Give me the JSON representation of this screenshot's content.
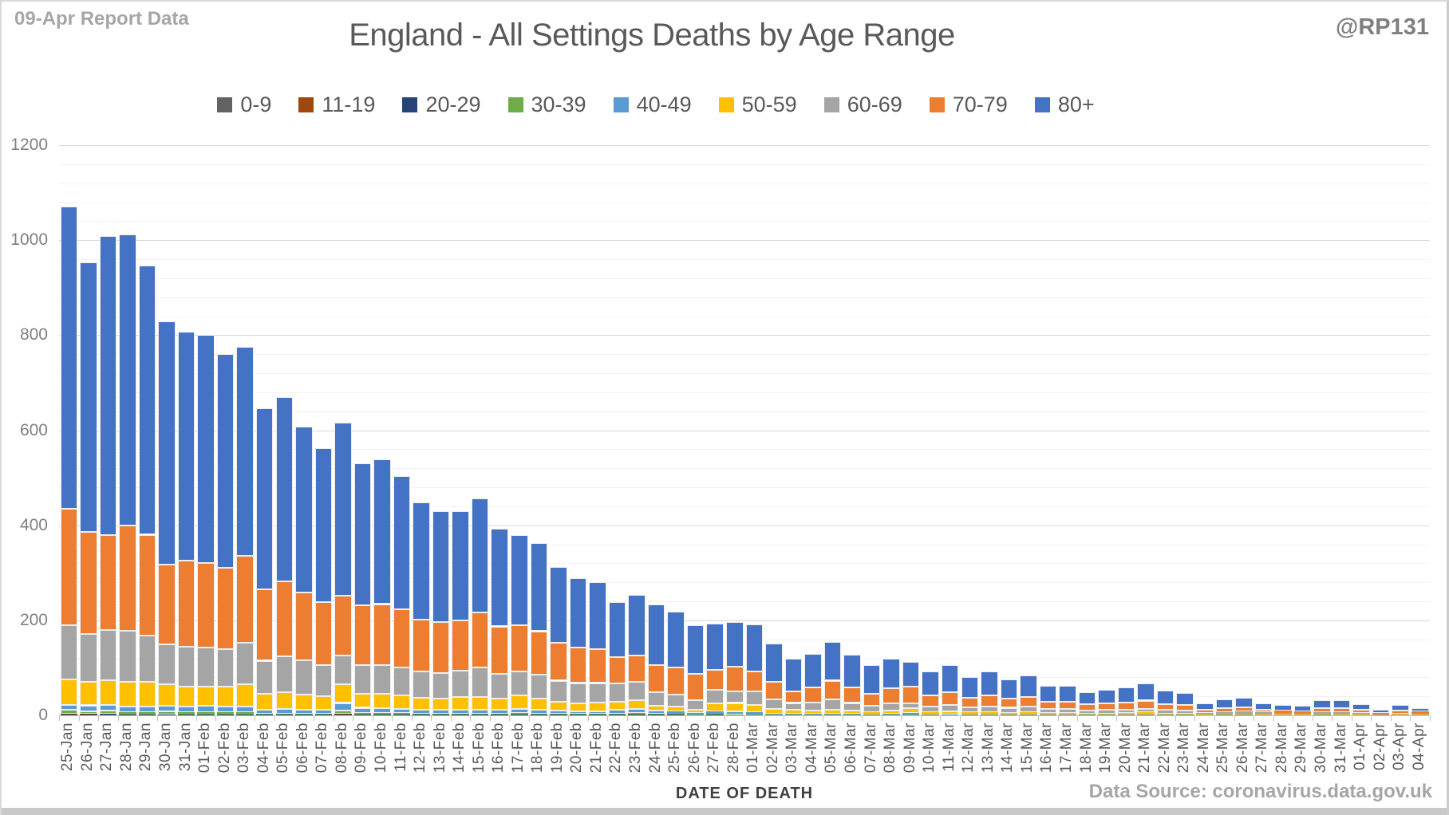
{
  "header": {
    "report_label": "09-Apr Report Data",
    "handle": "@RP131"
  },
  "footer": {
    "xaxis_title": "DATE OF DEATH",
    "data_source": "Data Source: coronavirus.data.gov.uk"
  },
  "colors": {
    "title_text": "#595959",
    "muted_text": "#A6A6A6",
    "axis_text": "#7F7F7F",
    "major_gridline": "#D9D9D9",
    "minor_gridline": "#F2F2F2",
    "axis_line": "#BFBFBF"
  },
  "chart_data": {
    "type": "bar",
    "stacked": true,
    "title": "England - All Settings Deaths by Age Range",
    "xlabel": "DATE OF DEATH",
    "ylabel": "",
    "legend_position": "top",
    "grid": true,
    "ylim": [
      0,
      1200
    ],
    "major_unit": 200,
    "minor_unit": 40,
    "ytick_labels": [
      "0",
      "200",
      "400",
      "600",
      "800",
      "1000",
      "1200"
    ],
    "categories": [
      "25-Jan",
      "26-Jan",
      "27-Jan",
      "28-Jan",
      "29-Jan",
      "30-Jan",
      "31-Jan",
      "01-Feb",
      "02-Feb",
      "03-Feb",
      "04-Feb",
      "05-Feb",
      "06-Feb",
      "07-Feb",
      "08-Feb",
      "09-Feb",
      "10-Feb",
      "11-Feb",
      "12-Feb",
      "13-Feb",
      "14-Feb",
      "15-Feb",
      "16-Feb",
      "17-Feb",
      "18-Feb",
      "19-Feb",
      "20-Feb",
      "21-Feb",
      "22-Feb",
      "23-Feb",
      "24-Feb",
      "25-Feb",
      "26-Feb",
      "27-Feb",
      "28-Feb",
      "01-Mar",
      "02-Mar",
      "03-Mar",
      "04-Mar",
      "05-Mar",
      "06-Mar",
      "07-Mar",
      "08-Mar",
      "09-Mar",
      "10-Mar",
      "11-Mar",
      "12-Mar",
      "13-Mar",
      "14-Mar",
      "15-Mar",
      "16-Mar",
      "17-Mar",
      "18-Mar",
      "19-Mar",
      "20-Mar",
      "21-Mar",
      "22-Mar",
      "23-Mar",
      "24-Mar",
      "25-Mar",
      "26-Mar",
      "27-Mar",
      "28-Mar",
      "29-Mar",
      "30-Mar",
      "31-Mar",
      "01-Apr",
      "02-Apr",
      "03-Apr",
      "04-Apr"
    ],
    "series": [
      {
        "name": "0-9",
        "color": "#636363",
        "values": [
          1,
          0,
          1,
          0,
          1,
          0,
          0,
          0,
          0,
          0,
          0,
          0,
          0,
          0,
          0,
          0,
          0,
          0,
          0,
          0,
          1,
          0,
          0,
          0,
          0,
          0,
          0,
          0,
          0,
          0,
          0,
          0,
          0,
          0,
          0,
          0,
          0,
          0,
          0,
          0,
          0,
          0,
          0,
          0,
          0,
          0,
          0,
          0,
          0,
          0,
          0,
          0,
          0,
          0,
          0,
          0,
          0,
          0,
          0,
          0,
          0,
          0,
          0,
          0,
          0,
          0,
          0,
          0,
          0,
          0
        ]
      },
      {
        "name": "11-19",
        "color": "#9E480E",
        "values": [
          1,
          1,
          0,
          1,
          0,
          1,
          0,
          1,
          1,
          1,
          0,
          1,
          0,
          0,
          1,
          1,
          0,
          1,
          0,
          1,
          0,
          1,
          1,
          1,
          1,
          0,
          0,
          0,
          0,
          0,
          0,
          0,
          0,
          0,
          0,
          0,
          0,
          0,
          0,
          0,
          0,
          0,
          0,
          0,
          0,
          0,
          0,
          0,
          0,
          0,
          0,
          0,
          0,
          0,
          0,
          0,
          0,
          0,
          0,
          0,
          0,
          0,
          0,
          0,
          0,
          0,
          0,
          0,
          0,
          0
        ]
      },
      {
        "name": "20-29",
        "color": "#264478",
        "values": [
          2,
          2,
          2,
          1,
          1,
          1,
          2,
          1,
          1,
          1,
          1,
          1,
          1,
          1,
          2,
          1,
          1,
          1,
          1,
          1,
          1,
          1,
          1,
          1,
          1,
          1,
          1,
          1,
          1,
          2,
          1,
          1,
          1,
          1,
          1,
          1,
          0,
          0,
          0,
          0,
          0,
          0,
          0,
          1,
          0,
          0,
          0,
          0,
          0,
          0,
          0,
          0,
          0,
          0,
          0,
          0,
          0,
          0,
          0,
          0,
          0,
          0,
          0,
          0,
          0,
          0,
          0,
          0,
          0,
          0
        ]
      },
      {
        "name": "30-39",
        "color": "#70AD47",
        "values": [
          7,
          6,
          7,
          5,
          5,
          6,
          4,
          4,
          4,
          4,
          3,
          2,
          2,
          2,
          7,
          3,
          4,
          3,
          3,
          2,
          2,
          2,
          2,
          3,
          2,
          2,
          2,
          2,
          2,
          3,
          3,
          2,
          1,
          2,
          1,
          1,
          1,
          1,
          1,
          1,
          1,
          1,
          1,
          1,
          1,
          1,
          1,
          1,
          1,
          1,
          1,
          1,
          0,
          0,
          0,
          1,
          0,
          0,
          0,
          0,
          0,
          0,
          0,
          0,
          0,
          0,
          0,
          0,
          0,
          0
        ]
      },
      {
        "name": "40-49",
        "color": "#5B9BD5",
        "values": [
          11,
          12,
          12,
          11,
          12,
          12,
          13,
          14,
          12,
          12,
          8,
          9,
          8,
          8,
          16,
          11,
          10,
          9,
          8,
          8,
          8,
          8,
          7,
          9,
          8,
          7,
          6,
          6,
          8,
          9,
          6,
          5,
          3,
          5,
          6,
          5,
          3,
          2,
          2,
          3,
          2,
          1,
          2,
          3,
          1,
          1,
          1,
          1,
          1,
          1,
          1,
          1,
          1,
          1,
          1,
          1,
          1,
          1,
          0,
          1,
          1,
          1,
          0,
          0,
          1,
          0,
          0,
          0,
          0,
          0
        ]
      },
      {
        "name": "50-59",
        "color": "#FFC000",
        "values": [
          54,
          50,
          52,
          52,
          51,
          45,
          42,
          40,
          42,
          47,
          33,
          36,
          33,
          29,
          40,
          30,
          30,
          28,
          25,
          24,
          26,
          27,
          24,
          28,
          23,
          19,
          17,
          18,
          17,
          18,
          10,
          11,
          7,
          17,
          18,
          15,
          9,
          8,
          7,
          8,
          7,
          5,
          7,
          10,
          4,
          6,
          4,
          5,
          4,
          4,
          3,
          3,
          3,
          3,
          4,
          4,
          3,
          3,
          2,
          2,
          2,
          1,
          2,
          1,
          2,
          2,
          2,
          1,
          1,
          1
        ]
      },
      {
        "name": "60-69",
        "color": "#A5A5A5",
        "values": [
          113,
          100,
          105,
          108,
          98,
          85,
          84,
          82,
          80,
          88,
          70,
          75,
          72,
          66,
          60,
          60,
          61,
          59,
          55,
          53,
          56,
          62,
          52,
          50,
          50,
          44,
          42,
          41,
          39,
          39,
          28,
          24,
          20,
          28,
          25,
          28,
          21,
          15,
          17,
          21,
          16,
          13,
          16,
          10,
          12,
          14,
          11,
          12,
          10,
          12,
          8,
          8,
          6,
          7,
          7,
          8,
          7,
          6,
          3,
          4,
          5,
          4,
          3,
          3,
          4,
          5,
          3,
          1,
          3,
          2
        ]
      },
      {
        "name": "70-79",
        "color": "#ED7D31",
        "values": [
          245,
          215,
          200,
          222,
          212,
          168,
          180,
          178,
          170,
          182,
          150,
          158,
          142,
          132,
          126,
          125,
          128,
          122,
          110,
          108,
          105,
          115,
          100,
          98,
          92,
          80,
          74,
          72,
          56,
          55,
          58,
          57,
          56,
          42,
          52,
          42,
          37,
          25,
          32,
          40,
          33,
          26,
          31,
          35,
          24,
          27,
          20,
          23,
          19,
          21,
          16,
          16,
          13,
          14,
          15,
          17,
          13,
          12,
          7,
          8,
          9,
          6,
          5,
          5,
          8,
          8,
          6,
          3,
          6,
          5
        ]
      },
      {
        "name": "80+",
        "color": "#4472C4",
        "values": [
          637,
          568,
          629,
          612,
          567,
          512,
          483,
          480,
          450,
          440,
          381,
          387,
          349,
          324,
          364,
          300,
          305,
          280,
          247,
          232,
          230,
          240,
          205,
          190,
          185,
          160,
          146,
          140,
          116,
          127,
          127,
          118,
          102,
          98,
          94,
          99,
          80,
          69,
          70,
          82,
          68,
          60,
          63,
          53,
          50,
          57,
          44,
          50,
          41,
          45,
          34,
          33,
          26,
          29,
          32,
          36,
          28,
          25,
          13,
          18,
          20,
          13,
          12,
          11,
          17,
          17,
          13,
          6,
          12,
          8
        ]
      }
    ]
  }
}
